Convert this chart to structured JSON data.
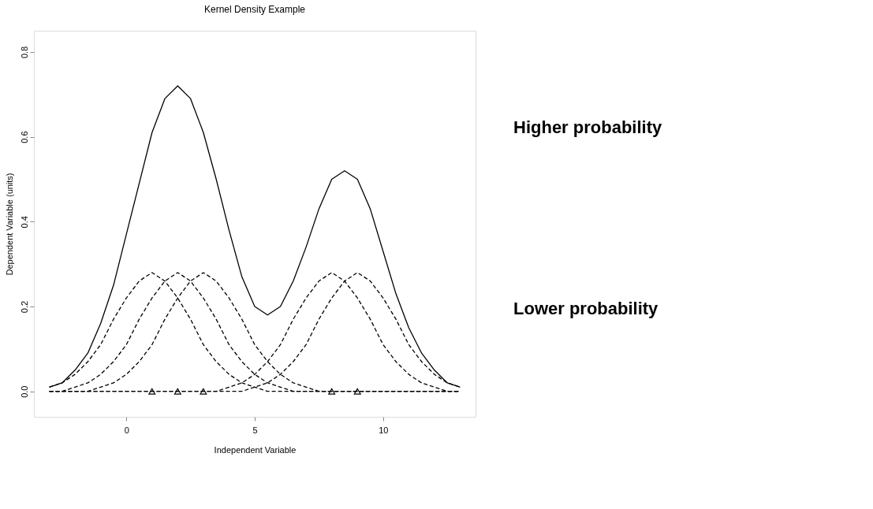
{
  "chart_data": {
    "type": "line",
    "title": "Kernel Density Example",
    "xlabel": "Independent Variable",
    "ylabel": "Dependent Variable (units)",
    "x": [
      -3,
      -2.5,
      -2,
      -1.5,
      -1,
      -0.5,
      0,
      0.5,
      1,
      1.5,
      2,
      2.5,
      3,
      3.5,
      4,
      4.5,
      5,
      5.5,
      6,
      6.5,
      7,
      7.5,
      8,
      8.5,
      9,
      9.5,
      10,
      10.5,
      11,
      11.5,
      12,
      12.5,
      13
    ],
    "series": [
      {
        "color": "#000000",
        "line_style": "solid",
        "values": [
          0.01,
          0.02,
          0.05,
          0.09,
          0.16,
          0.25,
          0.37,
          0.49,
          0.61,
          0.69,
          0.72,
          0.69,
          0.61,
          0.5,
          0.38,
          0.27,
          0.2,
          0.18,
          0.2,
          0.26,
          0.34,
          0.43,
          0.5,
          0.52,
          0.5,
          0.43,
          0.33,
          0.23,
          0.15,
          0.09,
          0.05,
          0.02,
          0.01
        ]
      },
      {
        "color": "#000000",
        "line_style": "dashed",
        "values": [
          0.01,
          0.02,
          0.04,
          0.07,
          0.11,
          0.17,
          0.22,
          0.26,
          0.28,
          0.26,
          0.22,
          0.17,
          0.11,
          0.07,
          0.04,
          0.02,
          0.01,
          0,
          0,
          0,
          0,
          0,
          0,
          0,
          0,
          0,
          0,
          0,
          0,
          0,
          0,
          0,
          0
        ]
      },
      {
        "color": "#000000",
        "line_style": "dashed",
        "values": [
          0,
          0,
          0.01,
          0.02,
          0.04,
          0.07,
          0.11,
          0.17,
          0.22,
          0.26,
          0.28,
          0.26,
          0.22,
          0.17,
          0.11,
          0.07,
          0.04,
          0.02,
          0.01,
          0,
          0,
          0,
          0,
          0,
          0,
          0,
          0,
          0,
          0,
          0,
          0,
          0,
          0
        ]
      },
      {
        "color": "#000000",
        "line_style": "dashed",
        "values": [
          0,
          0,
          0,
          0,
          0.01,
          0.02,
          0.04,
          0.07,
          0.11,
          0.17,
          0.22,
          0.26,
          0.28,
          0.26,
          0.22,
          0.17,
          0.11,
          0.07,
          0.04,
          0.02,
          0.01,
          0,
          0,
          0,
          0,
          0,
          0,
          0,
          0,
          0,
          0,
          0,
          0
        ]
      },
      {
        "color": "#000000",
        "line_style": "dashed",
        "values": [
          0,
          0,
          0,
          0,
          0,
          0,
          0,
          0,
          0,
          0,
          0,
          0,
          0,
          0,
          0.01,
          0.02,
          0.04,
          0.07,
          0.11,
          0.17,
          0.22,
          0.26,
          0.28,
          0.26,
          0.22,
          0.17,
          0.11,
          0.07,
          0.04,
          0.02,
          0.01,
          0,
          0
        ]
      },
      {
        "color": "#000000",
        "line_style": "dashed",
        "values": [
          0,
          0,
          0,
          0,
          0,
          0,
          0,
          0,
          0,
          0,
          0,
          0,
          0,
          0,
          0,
          0,
          0.01,
          0.02,
          0.04,
          0.07,
          0.11,
          0.17,
          0.22,
          0.26,
          0.28,
          0.26,
          0.22,
          0.17,
          0.11,
          0.07,
          0.04,
          0.02,
          0.01
        ]
      },
      {
        "type": "scatter",
        "marker": "triangle",
        "color": "#000000",
        "x": [
          1,
          2,
          3,
          8,
          9
        ],
        "values": [
          0,
          0,
          0,
          0,
          0
        ]
      }
    ],
    "xlim": [
      -3.6,
      13.6
    ],
    "ylim": [
      -0.06,
      0.85
    ],
    "xticks": [
      0,
      5,
      10
    ],
    "yticks": [
      {
        "value": 0,
        "label": "0.0"
      },
      0.2,
      0.4,
      0.6,
      0.8
    ],
    "grid": false,
    "marker": "none",
    "annotations": [
      "Higher probability",
      "Lower probability"
    ]
  }
}
